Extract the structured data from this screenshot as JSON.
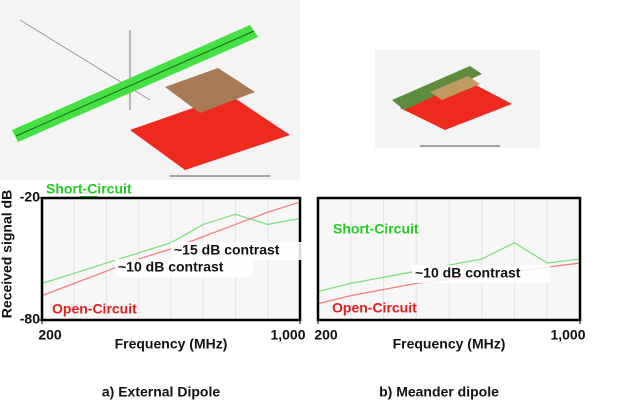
{
  "chart_data": [
    {
      "type": "line",
      "caption": "a) External Dipole",
      "x_label": "Frequency (MHz)",
      "y_label": "Received signal dB",
      "x": [
        200,
        300,
        400,
        500,
        600,
        700,
        800,
        900,
        1000
      ],
      "series": [
        {
          "name": "Short-Circuit",
          "color": "#7fe07f",
          "values": [
            -62,
            -57,
            -52,
            -47,
            -42,
            -33,
            -28,
            -33,
            -30
          ]
        },
        {
          "name": "Open-Circuit",
          "color": "#f08080",
          "values": [
            -68,
            -62,
            -56,
            -50,
            -45,
            -39,
            -33,
            -27,
            -22
          ]
        }
      ],
      "annotations": [
        "~15 dB contrast",
        "~10 dB contrast"
      ],
      "xlim": [
        200,
        1000
      ],
      "ylim": [
        -80,
        -20
      ],
      "xticks": [
        200,
        {
          "value": 1000,
          "label": "1,000"
        }
      ],
      "yticks": [
        -20,
        -80
      ]
    },
    {
      "type": "line",
      "caption": "b) Meander dipole",
      "x_label": "Frequency (MHz)",
      "x": [
        200,
        300,
        400,
        500,
        600,
        700,
        800,
        900,
        1000
      ],
      "series": [
        {
          "name": "Short-Circuit",
          "color": "#7fe07f",
          "values": [
            -66,
            -62,
            -59,
            -56,
            -53,
            -50,
            -42,
            -52,
            -50
          ]
        },
        {
          "name": "Open-Circuit",
          "color": "#f08080",
          "values": [
            -72,
            -68,
            -65,
            -62,
            -60,
            -58,
            -56,
            -54,
            -52
          ]
        }
      ],
      "annotations": [
        "~10 dB contrast"
      ],
      "xlim": [
        200,
        1000
      ],
      "ylim": [
        -80,
        -20
      ],
      "xticks": [
        200,
        {
          "value": 1000,
          "label": "1,000"
        }
      ]
    }
  ]
}
